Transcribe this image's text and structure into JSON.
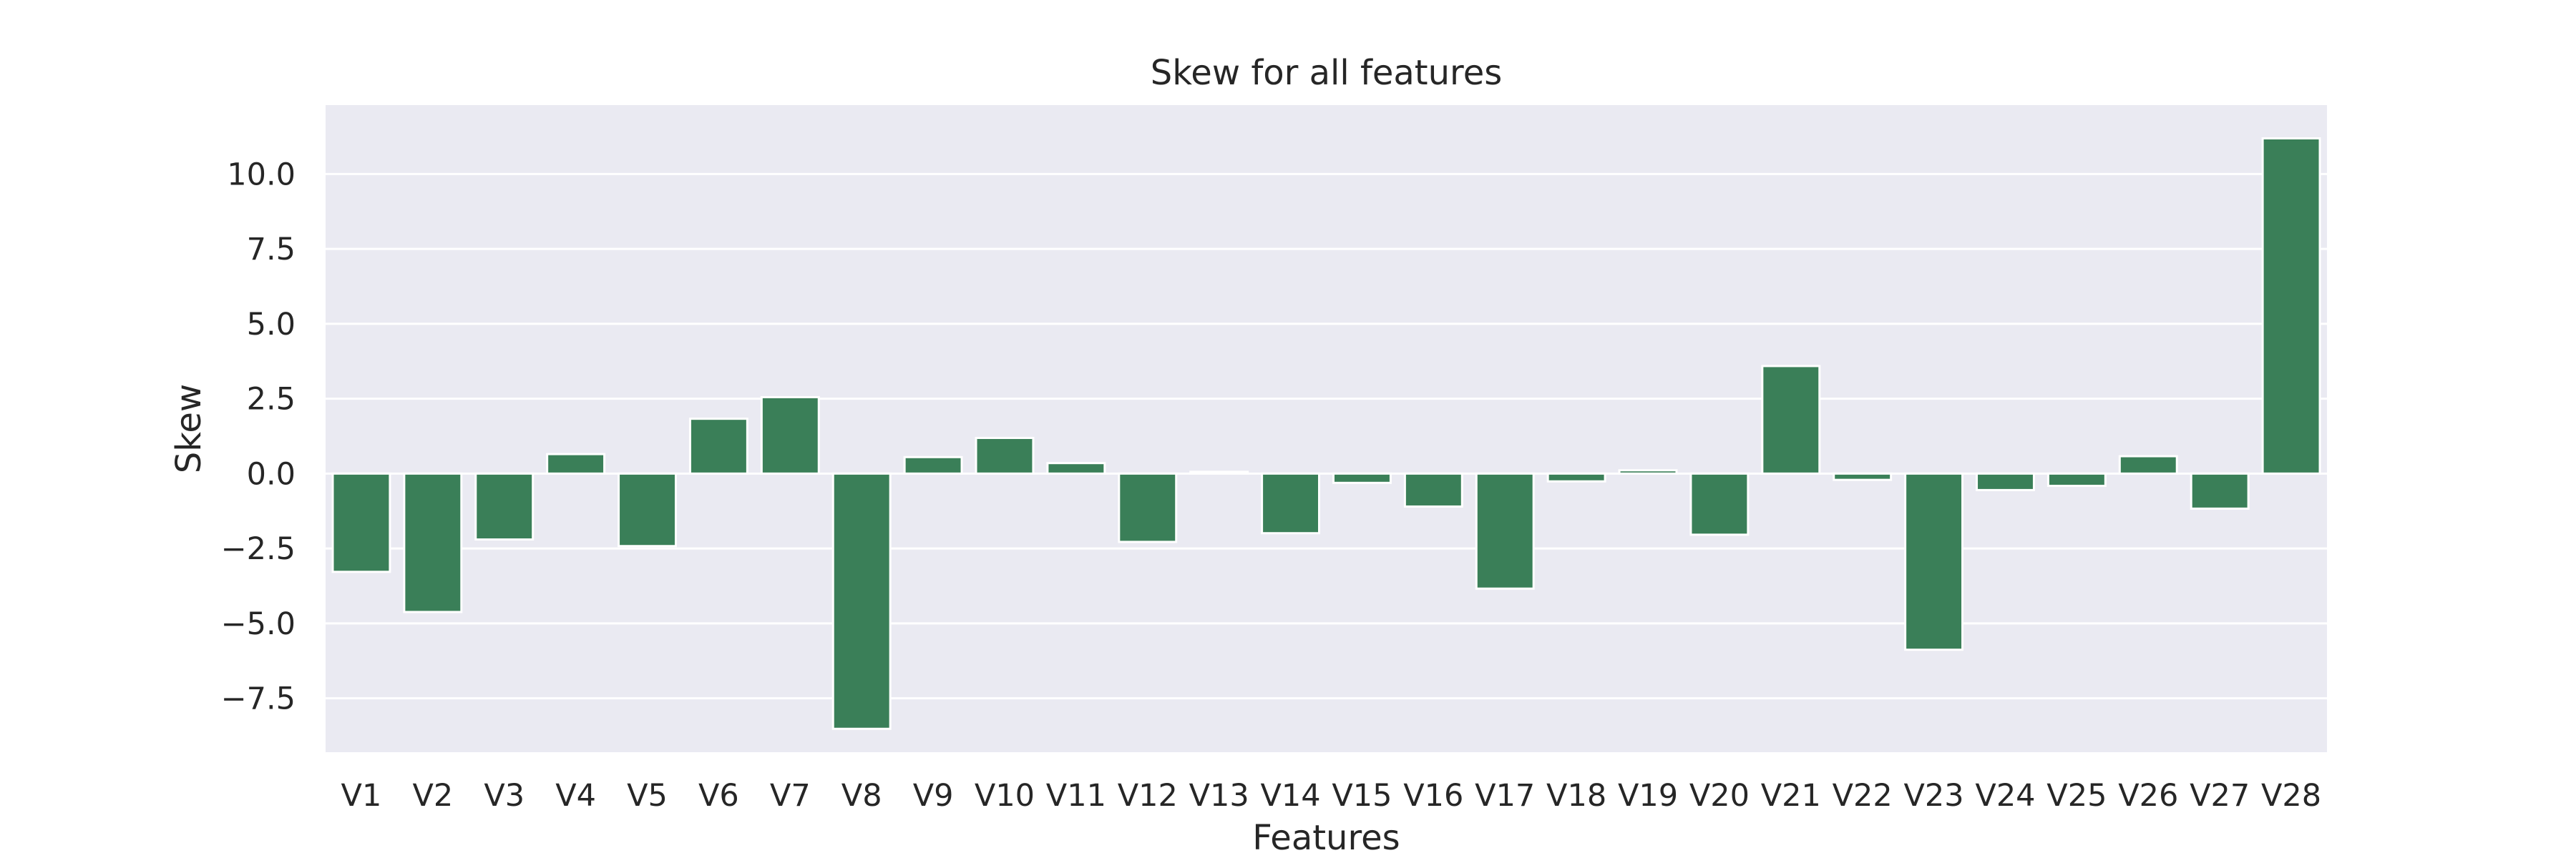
{
  "chart_data": {
    "type": "bar",
    "title": "Skew for all features",
    "xlabel": "Features",
    "ylabel": "Skew",
    "categories": [
      "V1",
      "V2",
      "V3",
      "V4",
      "V5",
      "V6",
      "V7",
      "V8",
      "V9",
      "V10",
      "V11",
      "V12",
      "V13",
      "V14",
      "V15",
      "V16",
      "V17",
      "V18",
      "V19",
      "V20",
      "V21",
      "V22",
      "V23",
      "V24",
      "V25",
      "V26",
      "V27",
      "V28"
    ],
    "values": [
      -3.28,
      -4.62,
      -2.2,
      0.65,
      -2.42,
      1.83,
      2.55,
      -8.52,
      0.55,
      1.19,
      0.35,
      -2.28,
      0.06,
      -1.99,
      -0.31,
      -1.1,
      -3.84,
      -0.26,
      0.11,
      -2.04,
      3.59,
      -0.21,
      -5.88,
      -0.55,
      -0.41,
      0.58,
      -1.17,
      11.19
    ],
    "ylim": [
      -9.3,
      12.3
    ],
    "yticks": [
      10.0,
      7.5,
      5.0,
      2.5,
      0.0,
      -2.5,
      -5.0,
      -7.5
    ],
    "ytick_labels": [
      "10.0",
      "7.5",
      "5.0",
      "2.5",
      "0.0",
      "−2.5",
      "−5.0",
      "−7.5"
    ],
    "grid": true,
    "bar_color": "#3a7f58",
    "background_color": "#eaeaf2"
  }
}
